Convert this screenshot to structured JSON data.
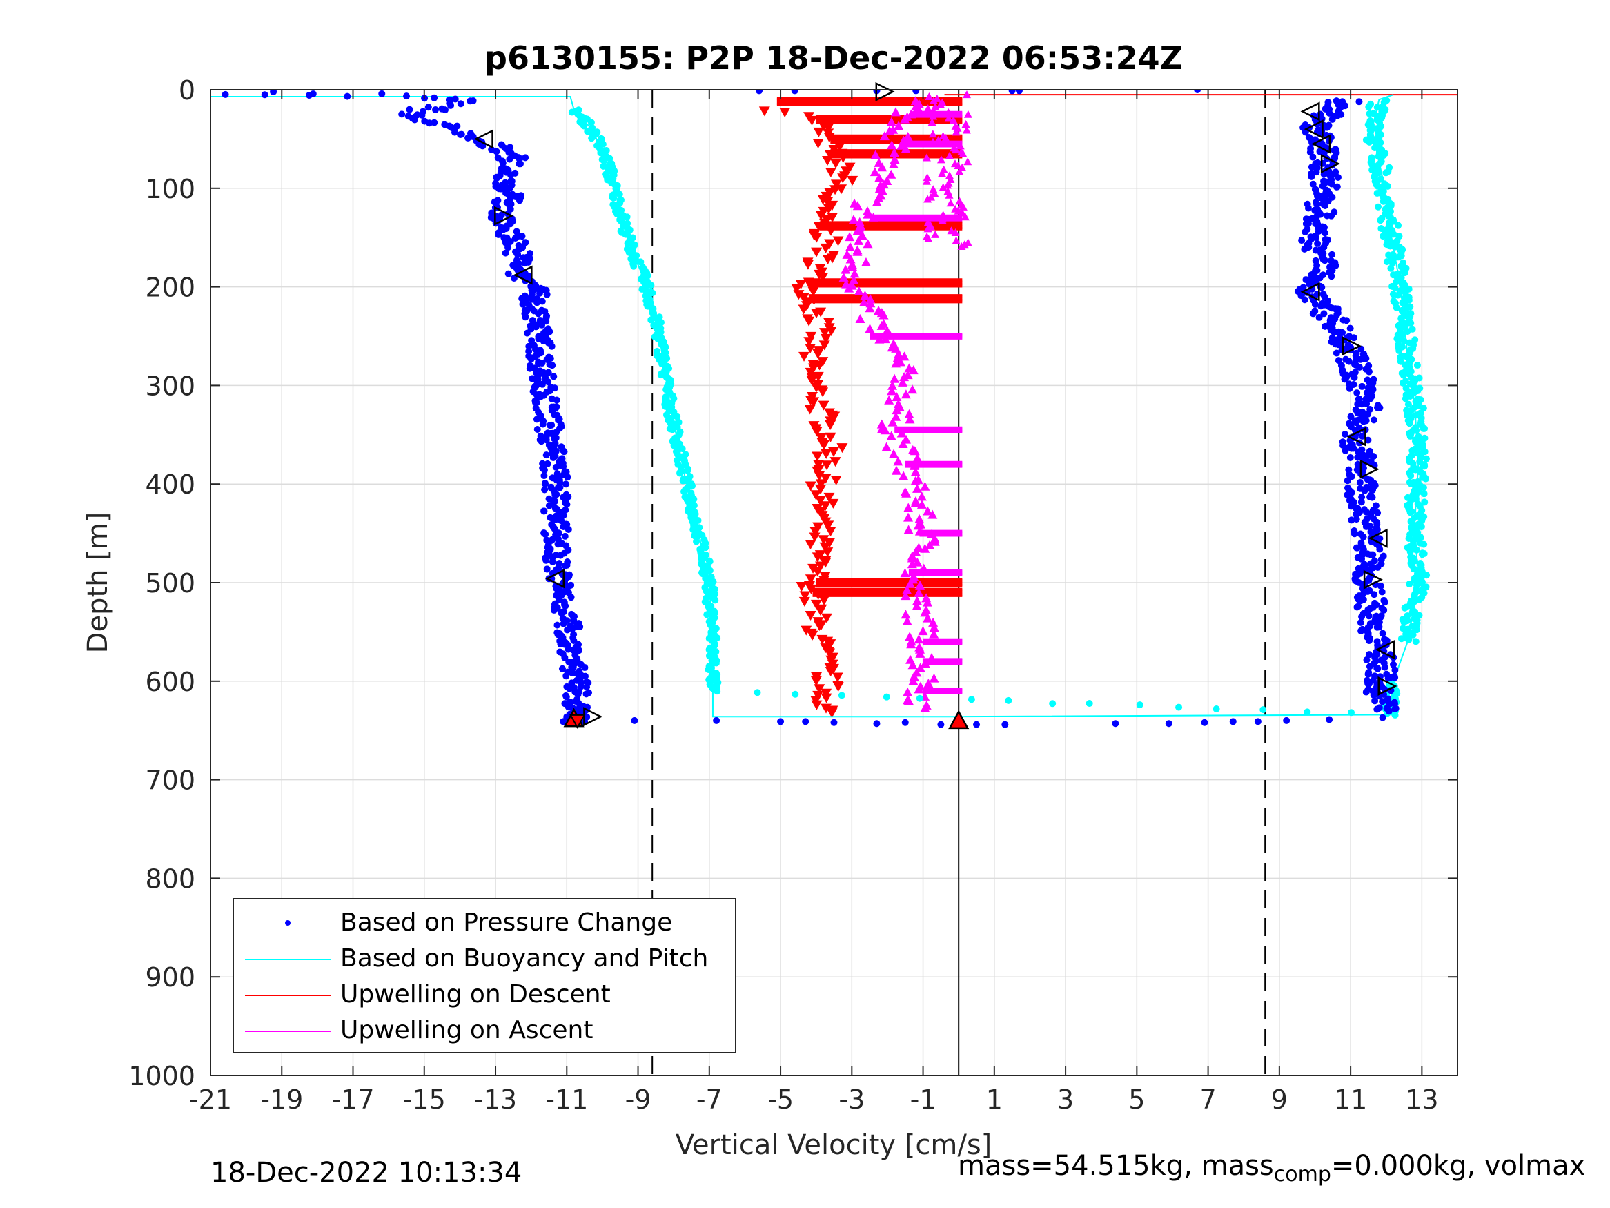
{
  "chart_data": {
    "type": "scatter",
    "title": "p6130155: P2P 18-Dec-2022 06:53:24Z",
    "xlabel": "Vertical Velocity [cm/s]",
    "ylabel": "Depth [m]",
    "xlim": [
      -21,
      14
    ],
    "ylim": [
      0,
      1000
    ],
    "y_reversed": true,
    "grid": true,
    "xticks": [
      "-21",
      "-19",
      "-17",
      "-15",
      "-13",
      "-11",
      "-9",
      "-7",
      "-5",
      "-3",
      "-1",
      "1",
      "3",
      "5",
      "7",
      "9",
      "11",
      "13"
    ],
    "yticks": [
      "0",
      "100",
      "200",
      "300",
      "400",
      "500",
      "600",
      "700",
      "800",
      "900",
      "1000"
    ],
    "reference_lines": {
      "dashed_x": [
        -8.6,
        8.6
      ],
      "solid_x": 0
    },
    "legend_location": "bottom-left",
    "series": [
      {
        "name": "Based on Pressure Change",
        "color": "#0000ff",
        "marker": "dot",
        "descent": [
          [
            -20.3,
            5
          ],
          [
            -19.6,
            5
          ],
          [
            -19.2,
            4
          ],
          [
            -17.8,
            6
          ],
          [
            -16.9,
            6
          ],
          [
            -15.9,
            6
          ],
          [
            -14.5,
            10
          ],
          [
            -13.9,
            12
          ],
          [
            -15.4,
            24
          ],
          [
            -15.0,
            32
          ],
          [
            -14.4,
            38
          ],
          [
            -13.7,
            48
          ],
          [
            -13.0,
            58
          ],
          [
            -12.5,
            70
          ],
          [
            -12.7,
            90
          ],
          [
            -12.6,
            110
          ],
          [
            -12.9,
            128
          ],
          [
            -12.5,
            150
          ],
          [
            -12.3,
            172
          ],
          [
            -12.4,
            190
          ],
          [
            -11.7,
            200
          ],
          [
            -12.0,
            210
          ],
          [
            -11.8,
            240
          ],
          [
            -11.7,
            280
          ],
          [
            -11.6,
            320
          ],
          [
            -11.4,
            360
          ],
          [
            -11.3,
            400
          ],
          [
            -11.3,
            440
          ],
          [
            -11.3,
            480
          ],
          [
            -11.2,
            500
          ],
          [
            -11.0,
            540
          ],
          [
            -10.8,
            580
          ],
          [
            -10.7,
            620
          ],
          [
            -10.8,
            640
          ]
        ],
        "ascent": [
          [
            12.0,
            630
          ],
          [
            11.8,
            610
          ],
          [
            11.9,
            590
          ],
          [
            11.7,
            560
          ],
          [
            11.6,
            530
          ],
          [
            11.5,
            500
          ],
          [
            11.6,
            470
          ],
          [
            11.4,
            440
          ],
          [
            11.3,
            410
          ],
          [
            11.3,
            380
          ],
          [
            11.1,
            350
          ],
          [
            11.5,
            320
          ],
          [
            11.2,
            290
          ],
          [
            10.9,
            260
          ],
          [
            10.6,
            240
          ],
          [
            10.2,
            220
          ],
          [
            9.8,
            200
          ],
          [
            10.4,
            180
          ],
          [
            10.0,
            160
          ],
          [
            10.1,
            130
          ],
          [
            10.3,
            100
          ],
          [
            10.2,
            75
          ],
          [
            10.3,
            55
          ],
          [
            10.0,
            40
          ],
          [
            10.3,
            25
          ],
          [
            10.9,
            10
          ]
        ],
        "surface_transects": [
          [
            [
              -11.1,
              641
            ],
            [
              -10.5,
              641
            ],
            [
              -9.1,
              640
            ],
            [
              -6.8,
              640
            ],
            [
              -5.0,
              641
            ],
            [
              -4.3,
              641
            ],
            [
              -3.5,
              642
            ],
            [
              -2.3,
              643
            ],
            [
              -1.5,
              642
            ],
            [
              -0.5,
              644
            ],
            [
              0.5,
              644
            ],
            [
              1.3,
              644
            ],
            [
              4.4,
              643
            ],
            [
              5.9,
              643
            ],
            [
              6.9,
              642
            ],
            [
              7.7,
              641
            ],
            [
              8.4,
              641
            ],
            [
              9.2,
              640
            ],
            [
              10.4,
              639
            ],
            [
              11.9,
              637
            ]
          ],
          [
            [
              -5.6,
              1
            ],
            [
              -4.6,
              1
            ],
            [
              -2.3,
              1
            ],
            [
              -1.2,
              1
            ],
            [
              1.5,
              1
            ],
            [
              1.7,
              1
            ],
            [
              6.7,
              0
            ]
          ]
        ]
      },
      {
        "name": "Based on Buoyancy and Pitch",
        "color": "#00ffff",
        "line": [
          [
            -21,
            7
          ],
          [
            -10.9,
            7
          ],
          [
            -10.8,
            20
          ],
          [
            -10.3,
            40
          ],
          [
            -9.9,
            70
          ],
          [
            -9.6,
            110
          ],
          [
            -9.2,
            160
          ],
          [
            -8.8,
            195
          ],
          [
            -8.4,
            250
          ],
          [
            -8.1,
            320
          ],
          [
            -7.7,
            390
          ],
          [
            -7.3,
            450
          ],
          [
            -7.0,
            500
          ],
          [
            -6.9,
            560
          ],
          [
            -6.9,
            610
          ],
          [
            -6.9,
            636
          ],
          [
            0,
            636
          ],
          [
            12.1,
            634
          ],
          [
            12.2,
            600
          ],
          [
            12.6,
            560
          ],
          [
            12.9,
            500
          ],
          [
            12.8,
            440
          ],
          [
            12.9,
            380
          ],
          [
            12.8,
            320
          ],
          [
            12.6,
            270
          ],
          [
            12.4,
            200
          ],
          [
            12.1,
            140
          ],
          [
            11.9,
            90
          ],
          [
            11.6,
            40
          ],
          [
            11.8,
            10
          ],
          [
            12.2,
            5
          ]
        ]
      },
      {
        "name": "Upwelling on Descent",
        "color": "#ff0000",
        "marker": "triangle-down",
        "points": [
          [
            -5.1,
            20
          ],
          [
            -4.0,
            30
          ],
          [
            -3.6,
            60
          ],
          [
            -3.2,
            90
          ],
          [
            -3.9,
            120
          ],
          [
            -3.7,
            160
          ],
          [
            -4.2,
            200
          ],
          [
            -3.9,
            240
          ],
          [
            -4.2,
            280
          ],
          [
            -3.9,
            320
          ],
          [
            -3.6,
            360
          ],
          [
            -3.8,
            400
          ],
          [
            -3.9,
            440
          ],
          [
            -4.0,
            480
          ],
          [
            -4.1,
            520
          ],
          [
            -3.9,
            560
          ],
          [
            -3.7,
            600
          ],
          [
            -3.7,
            635
          ]
        ],
        "spikes_to_zero_at_depth": [
          12,
          30,
          50,
          65,
          138,
          196,
          212,
          500,
          510
        ],
        "surface_line": [
          [
            -0.4,
            5
          ],
          [
            14,
            5
          ]
        ]
      },
      {
        "name": "Upwelling on Ascent",
        "color": "#ff00ff",
        "marker": "triangle-up",
        "points": [
          [
            -1.3,
            10
          ],
          [
            -1.6,
            40
          ],
          [
            -2.0,
            70
          ],
          [
            -2.5,
            110
          ],
          [
            -2.9,
            150
          ],
          [
            -2.9,
            190
          ],
          [
            -2.5,
            230
          ],
          [
            -1.8,
            270
          ],
          [
            -1.5,
            300
          ],
          [
            -1.8,
            340
          ],
          [
            -1.5,
            380
          ],
          [
            -1.2,
            410
          ],
          [
            -1.1,
            440
          ],
          [
            -0.9,
            470
          ],
          [
            -1.4,
            500
          ],
          [
            -1.1,
            530
          ],
          [
            -1.0,
            560
          ],
          [
            -1.0,
            600
          ],
          [
            -1.1,
            630
          ]
        ],
        "spikes_to_zero_at_depth": [
          25,
          55,
          130,
          250,
          345,
          380,
          450,
          490,
          560,
          580,
          610
        ]
      }
    ],
    "markers": {
      "black_open_right": [
        [
          -2.1,
          2
        ],
        [
          -12.8,
          128
        ],
        [
          -10.3,
          636
        ],
        [
          10.4,
          75
        ],
        [
          11.0,
          260
        ],
        [
          11.5,
          385
        ],
        [
          11.6,
          497
        ],
        [
          12.0,
          605
        ]
      ],
      "black_open_left": [
        [
          -13.3,
          50
        ],
        [
          -12.2,
          188
        ],
        [
          -11.3,
          496
        ],
        [
          9.9,
          22
        ],
        [
          10.0,
          40
        ],
        [
          10.2,
          55
        ],
        [
          9.9,
          205
        ],
        [
          11.2,
          352
        ],
        [
          11.8,
          455
        ],
        [
          12.0,
          568
        ]
      ],
      "red_filled_up": [
        [
          0,
          640
        ],
        [
          -10.8,
          638
        ]
      ],
      "red_filled_down": [
        [
          -10.7,
          640
        ]
      ]
    }
  },
  "footer": {
    "timestamp": "18-Dec-2022 10:13:34",
    "mass_text_1": "mass=54.515kg, mass",
    "mass_sub": "comp",
    "mass_text_2": "=0.000kg, volmax"
  }
}
